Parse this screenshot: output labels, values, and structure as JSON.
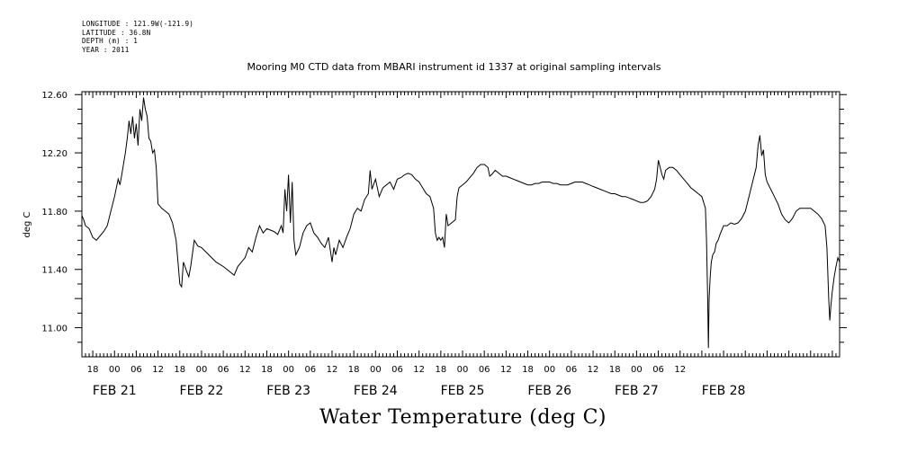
{
  "header": {
    "longitude": "LONGITUDE : 121.9W(-121.9)",
    "latitude": "LATITUDE : 36.8N",
    "depth": "DEPTH (m) : 1",
    "year": "YEAR : 2011"
  },
  "chart_data": {
    "type": "line",
    "title": "Mooring M0 CTD data from MBARI instrument id 1337 at original sampling intervals",
    "ylabel": "deg C",
    "xlabel": "Water Temperature (deg C)",
    "ylim": [
      10.8,
      12.62
    ],
    "yticks": [
      11.0,
      11.4,
      11.8,
      12.2,
      12.6
    ],
    "ytick_labels": [
      "11.00",
      "11.40",
      "11.80",
      "12.20",
      "12.60"
    ],
    "xlim": [
      -9,
      200
    ],
    "x_units": "hours from 2011-02-21 00:00",
    "hour_tick_labels": [
      "18",
      "00",
      "06",
      "12",
      "18",
      "00",
      "06",
      "12",
      "18",
      "00",
      "06",
      "12",
      "18",
      "00",
      "06",
      "12",
      "18",
      "00",
      "06",
      "12",
      "18",
      "00",
      "06",
      "12",
      "18",
      "00",
      "06",
      "12"
    ],
    "day_labels": [
      "FEB 21",
      "FEB 22",
      "FEB 23",
      "FEB 24",
      "FEB 25",
      "FEB 26",
      "FEB 27",
      "FEB 28"
    ],
    "series": [
      {
        "values": [
          [
            -9,
            11.77
          ],
          [
            -8.5,
            11.74
          ],
          [
            -8,
            11.7
          ],
          [
            -7,
            11.68
          ],
          [
            -6,
            11.62
          ],
          [
            -5,
            11.6
          ],
          [
            -4,
            11.63
          ],
          [
            -3,
            11.66
          ],
          [
            -2,
            11.7
          ],
          [
            -1,
            11.8
          ],
          [
            0,
            11.9
          ],
          [
            1,
            12.02
          ],
          [
            1.5,
            11.98
          ],
          [
            2,
            12.05
          ],
          [
            3,
            12.2
          ],
          [
            3.5,
            12.3
          ],
          [
            4,
            12.42
          ],
          [
            4.5,
            12.33
          ],
          [
            5,
            12.45
          ],
          [
            5.5,
            12.3
          ],
          [
            6,
            12.4
          ],
          [
            6.5,
            12.25
          ],
          [
            7,
            12.5
          ],
          [
            7.5,
            12.42
          ],
          [
            8,
            12.58
          ],
          [
            8.5,
            12.5
          ],
          [
            9,
            12.45
          ],
          [
            9.5,
            12.3
          ],
          [
            10,
            12.28
          ],
          [
            10.5,
            12.2
          ],
          [
            11,
            12.22
          ],
          [
            11.5,
            12.1
          ],
          [
            12,
            11.85
          ],
          [
            13,
            11.82
          ],
          [
            14,
            11.8
          ],
          [
            15,
            11.78
          ],
          [
            16,
            11.72
          ],
          [
            17,
            11.6
          ],
          [
            17.5,
            11.45
          ],
          [
            18,
            11.3
          ],
          [
            18.5,
            11.28
          ],
          [
            19,
            11.45
          ],
          [
            20,
            11.38
          ],
          [
            20.5,
            11.35
          ],
          [
            21,
            11.42
          ],
          [
            22,
            11.6
          ],
          [
            23,
            11.56
          ],
          [
            24,
            11.55
          ],
          [
            26,
            11.5
          ],
          [
            28,
            11.45
          ],
          [
            30,
            11.42
          ],
          [
            32,
            11.38
          ],
          [
            33,
            11.36
          ],
          [
            34,
            11.42
          ],
          [
            35,
            11.45
          ],
          [
            36,
            11.48
          ],
          [
            37,
            11.55
          ],
          [
            38,
            11.52
          ],
          [
            39,
            11.62
          ],
          [
            40,
            11.7
          ],
          [
            41,
            11.65
          ],
          [
            42,
            11.68
          ],
          [
            43,
            11.67
          ],
          [
            44,
            11.66
          ],
          [
            45,
            11.64
          ],
          [
            46,
            11.7
          ],
          [
            46.5,
            11.65
          ],
          [
            47,
            11.95
          ],
          [
            47.5,
            11.8
          ],
          [
            48,
            12.05
          ],
          [
            48.5,
            11.72
          ],
          [
            49,
            12.0
          ],
          [
            49.5,
            11.6
          ],
          [
            50,
            11.5
          ],
          [
            51,
            11.55
          ],
          [
            52,
            11.65
          ],
          [
            53,
            11.7
          ],
          [
            54,
            11.72
          ],
          [
            55,
            11.65
          ],
          [
            56,
            11.62
          ],
          [
            57,
            11.58
          ],
          [
            58,
            11.55
          ],
          [
            59,
            11.62
          ],
          [
            60,
            11.45
          ],
          [
            60.5,
            11.55
          ],
          [
            61,
            11.5
          ],
          [
            62,
            11.6
          ],
          [
            63,
            11.55
          ],
          [
            64,
            11.62
          ],
          [
            65,
            11.68
          ],
          [
            66,
            11.78
          ],
          [
            67,
            11.82
          ],
          [
            68,
            11.8
          ],
          [
            69,
            11.88
          ],
          [
            70,
            11.92
          ],
          [
            70.5,
            12.08
          ],
          [
            71,
            11.95
          ],
          [
            72,
            12.02
          ],
          [
            73,
            11.9
          ],
          [
            74,
            11.96
          ],
          [
            75,
            11.98
          ],
          [
            76,
            12.0
          ],
          [
            77,
            11.95
          ],
          [
            78,
            12.02
          ],
          [
            79,
            12.03
          ],
          [
            80,
            12.05
          ],
          [
            81,
            12.06
          ],
          [
            82,
            12.05
          ],
          [
            83,
            12.02
          ],
          [
            84,
            12.0
          ],
          [
            85,
            11.96
          ],
          [
            86,
            11.92
          ],
          [
            87,
            11.9
          ],
          [
            88,
            11.82
          ],
          [
            88.5,
            11.65
          ],
          [
            89,
            11.6
          ],
          [
            89.5,
            11.62
          ],
          [
            90,
            11.6
          ],
          [
            90.5,
            11.62
          ],
          [
            91,
            11.55
          ],
          [
            91.5,
            11.78
          ],
          [
            92,
            11.7
          ],
          [
            93,
            11.72
          ],
          [
            94,
            11.74
          ],
          [
            94.5,
            11.9
          ],
          [
            95,
            11.96
          ],
          [
            96,
            11.98
          ],
          [
            97,
            12.0
          ],
          [
            98,
            12.03
          ],
          [
            99,
            12.06
          ],
          [
            100,
            12.1
          ],
          [
            101,
            12.12
          ],
          [
            102,
            12.12
          ],
          [
            103,
            12.1
          ],
          [
            103.5,
            12.04
          ],
          [
            104,
            12.05
          ],
          [
            105,
            12.08
          ],
          [
            106,
            12.06
          ],
          [
            107,
            12.04
          ],
          [
            108,
            12.04
          ],
          [
            109,
            12.03
          ],
          [
            110,
            12.02
          ],
          [
            111,
            12.01
          ],
          [
            112,
            12.0
          ],
          [
            113,
            11.99
          ],
          [
            114,
            11.98
          ],
          [
            115,
            11.98
          ],
          [
            116,
            11.99
          ],
          [
            117,
            11.99
          ],
          [
            118,
            12.0
          ],
          [
            119,
            12.0
          ],
          [
            120,
            12.0
          ],
          [
            121,
            11.99
          ],
          [
            122,
            11.99
          ],
          [
            123,
            11.98
          ],
          [
            124,
            11.98
          ],
          [
            125,
            11.98
          ],
          [
            126,
            11.99
          ],
          [
            127,
            12.0
          ],
          [
            128,
            12.0
          ],
          [
            129,
            12.0
          ],
          [
            130,
            11.99
          ],
          [
            131,
            11.98
          ],
          [
            132,
            11.97
          ],
          [
            133,
            11.96
          ],
          [
            134,
            11.95
          ],
          [
            135,
            11.94
          ],
          [
            136,
            11.93
          ],
          [
            137,
            11.92
          ],
          [
            138,
            11.92
          ],
          [
            139,
            11.91
          ],
          [
            140,
            11.9
          ],
          [
            141,
            11.9
          ],
          [
            142,
            11.89
          ],
          [
            143,
            11.88
          ],
          [
            144,
            11.87
          ],
          [
            145,
            11.86
          ],
          [
            146,
            11.86
          ],
          [
            147,
            11.87
          ],
          [
            148,
            11.9
          ],
          [
            149,
            11.95
          ],
          [
            149.5,
            12.02
          ],
          [
            150,
            12.15
          ],
          [
            150.5,
            12.1
          ],
          [
            151,
            12.05
          ],
          [
            151.5,
            12.02
          ],
          [
            152,
            12.08
          ],
          [
            153,
            12.1
          ],
          [
            154,
            12.1
          ],
          [
            155,
            12.08
          ],
          [
            156,
            12.05
          ],
          [
            157,
            12.02
          ],
          [
            158,
            11.99
          ],
          [
            159,
            11.96
          ],
          [
            160,
            11.94
          ],
          [
            161,
            11.92
          ],
          [
            162,
            11.9
          ],
          [
            162.5,
            11.86
          ],
          [
            163,
            11.82
          ],
          [
            163.3,
            11.6
          ],
          [
            163.6,
            11.2
          ],
          [
            163.8,
            10.86
          ],
          [
            164,
            11.2
          ],
          [
            164.3,
            11.35
          ],
          [
            164.6,
            11.45
          ],
          [
            165,
            11.5
          ],
          [
            165.5,
            11.52
          ],
          [
            166,
            11.58
          ],
          [
            166.5,
            11.6
          ],
          [
            167,
            11.64
          ],
          [
            167.5,
            11.67
          ],
          [
            168,
            11.7
          ],
          [
            169,
            11.7
          ],
          [
            170,
            11.72
          ],
          [
            171,
            11.71
          ],
          [
            172,
            11.72
          ],
          [
            173,
            11.75
          ],
          [
            174,
            11.8
          ],
          [
            175,
            11.9
          ],
          [
            176,
            12.0
          ],
          [
            177,
            12.1
          ],
          [
            177.5,
            12.25
          ],
          [
            178,
            12.32
          ],
          [
            178.5,
            12.18
          ],
          [
            179,
            12.22
          ],
          [
            179.5,
            12.05
          ],
          [
            180,
            12.0
          ],
          [
            181,
            11.95
          ],
          [
            182,
            11.9
          ],
          [
            183,
            11.85
          ],
          [
            184,
            11.78
          ],
          [
            185,
            11.74
          ],
          [
            186,
            11.72
          ],
          [
            187,
            11.75
          ],
          [
            188,
            11.8
          ],
          [
            189,
            11.82
          ],
          [
            190,
            11.82
          ],
          [
            191,
            11.82
          ],
          [
            192,
            11.82
          ],
          [
            193,
            11.8
          ],
          [
            194,
            11.78
          ],
          [
            195,
            11.75
          ],
          [
            196,
            11.7
          ],
          [
            196.5,
            11.55
          ],
          [
            197,
            11.2
          ],
          [
            197.3,
            11.05
          ],
          [
            197.6,
            11.15
          ],
          [
            198,
            11.25
          ],
          [
            198.5,
            11.35
          ],
          [
            199,
            11.42
          ],
          [
            199.5,
            11.48
          ],
          [
            200,
            11.45
          ]
        ]
      }
    ]
  }
}
